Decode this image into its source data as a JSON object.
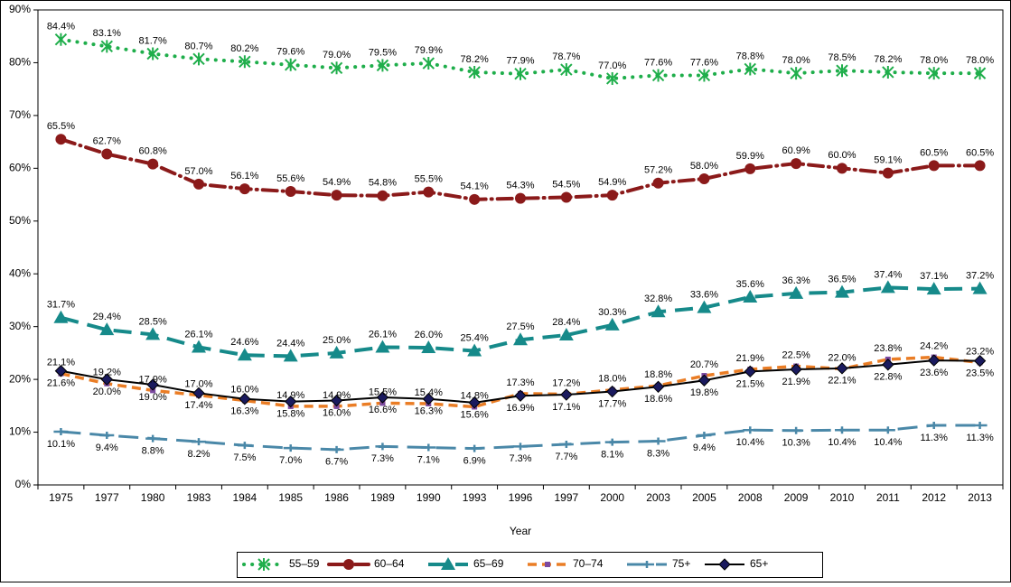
{
  "chart_data": {
    "type": "line",
    "categories": [
      "1975",
      "1977",
      "1980",
      "1983",
      "1984",
      "1985",
      "1986",
      "1989",
      "1990",
      "1993",
      "1996",
      "1997",
      "2000",
      "2003",
      "2005",
      "2008",
      "2009",
      "2010",
      "2011",
      "2012",
      "2013"
    ],
    "x_label": "Year",
    "ylim": [
      0,
      90
    ],
    "yticks": [
      {
        "value": 0,
        "label": "0%"
      },
      {
        "value": 10,
        "label": "10%"
      },
      {
        "value": 20,
        "label": "20%"
      },
      {
        "value": 30,
        "label": "30%"
      },
      {
        "value": 40,
        "label": "40%"
      },
      {
        "value": 50,
        "label": "50%"
      },
      {
        "value": 60,
        "label": "60%"
      },
      {
        "value": 70,
        "label": "70%"
      },
      {
        "value": 80,
        "label": "80%"
      },
      {
        "value": 90,
        "label": "90%"
      }
    ],
    "grid": false,
    "legend": "bottom",
    "series": [
      {
        "name": "55–59",
        "color": "#1fae4b",
        "values": [
          84.4,
          83.1,
          81.7,
          80.7,
          80.2,
          79.6,
          79.0,
          79.5,
          79.9,
          78.2,
          77.9,
          78.7,
          77.0,
          77.6,
          77.6,
          78.8,
          78.0,
          78.5,
          78.2,
          78.0,
          78.0
        ],
        "value_labels": [
          "84.4%",
          "83.1%",
          "81.7%",
          "80.7%",
          "80.2%",
          "79.6%",
          "79.0%",
          "79.5%",
          "79.9%",
          "78.2%",
          "77.9%",
          "78.7%",
          "77.0%",
          "77.6%",
          "77.6%",
          "78.8%",
          "78.0%",
          "78.5%",
          "78.2%",
          "78.0%",
          "78.0%"
        ]
      },
      {
        "name": "60–64",
        "color": "#8b1a1a",
        "values": [
          65.5,
          62.7,
          60.8,
          57.0,
          56.1,
          55.6,
          54.9,
          54.8,
          55.5,
          54.1,
          54.3,
          54.5,
          54.9,
          57.2,
          58.0,
          59.9,
          60.9,
          60.0,
          59.1,
          60.5,
          60.5
        ],
        "value_labels": [
          "65.5%",
          "62.7%",
          "60.8%",
          "57.0%",
          "56.1%",
          "55.6%",
          "54.9%",
          "54.8%",
          "55.5%",
          "54.1%",
          "54.3%",
          "54.5%",
          "54.9%",
          "57.2%",
          "58.0%",
          "59.9%",
          "60.9%",
          "60.0%",
          "59.1%",
          "60.5%",
          "60.5%"
        ]
      },
      {
        "name": "65–69",
        "color": "#168a8a",
        "values": [
          31.7,
          29.4,
          28.5,
          26.1,
          24.6,
          24.4,
          25.0,
          26.1,
          26.0,
          25.4,
          27.5,
          28.4,
          30.3,
          32.8,
          33.6,
          35.6,
          36.3,
          36.5,
          37.4,
          37.1,
          37.2
        ],
        "value_labels": [
          "31.7%",
          "29.4%",
          "28.5%",
          "26.1%",
          "24.6%",
          "24.4%",
          "25.0%",
          "26.1%",
          "26.0%",
          "25.4%",
          "27.5%",
          "28.4%",
          "30.3%",
          "32.8%",
          "33.6%",
          "35.6%",
          "36.3%",
          "36.5%",
          "37.4%",
          "37.1%",
          "37.2%"
        ]
      },
      {
        "name": "70–74",
        "color": "#ea7d25",
        "values": [
          21.1,
          19.2,
          17.9,
          17.0,
          16.0,
          14.9,
          14.9,
          15.5,
          15.4,
          14.8,
          17.3,
          17.2,
          18.0,
          18.8,
          20.7,
          21.9,
          22.5,
          22.0,
          23.8,
          24.2,
          23.2
        ],
        "value_labels": [
          "21.1%",
          "19.2%",
          "17.9%",
          "17.0%",
          "16.0%",
          "14.9%",
          "14.9%",
          "15.5%",
          "15.4%",
          "14.8%",
          "17.3%",
          "17.2%",
          "18.0%",
          "18.8%",
          "20.7%",
          "21.9%",
          "22.5%",
          "22.0%",
          "23.8%",
          "24.2%",
          "23.2%"
        ]
      },
      {
        "name": "75+",
        "color": "#4a88a8",
        "values": [
          10.1,
          9.4,
          8.8,
          8.2,
          7.5,
          7.0,
          6.7,
          7.3,
          7.1,
          6.9,
          7.3,
          7.7,
          8.1,
          8.3,
          9.4,
          10.4,
          10.3,
          10.4,
          10.4,
          11.3,
          11.3
        ],
        "value_labels": [
          "10.1%",
          "9.4%",
          "8.8%",
          "8.2%",
          "7.5%",
          "7.0%",
          "6.7%",
          "7.3%",
          "7.1%",
          "6.9%",
          "7.3%",
          "7.7%",
          "8.1%",
          "8.3%",
          "9.4%",
          "10.4%",
          "10.3%",
          "10.4%",
          "10.4%",
          "11.3%",
          "11.3%"
        ]
      },
      {
        "name": "65+",
        "color": "#000000",
        "values": [
          21.6,
          20.0,
          19.0,
          17.4,
          16.3,
          15.8,
          16.0,
          16.6,
          16.3,
          15.6,
          16.9,
          17.1,
          17.7,
          18.6,
          19.8,
          21.5,
          21.9,
          22.1,
          22.8,
          23.6,
          23.5
        ],
        "value_labels": [
          "21.6%",
          "20.0%",
          "19.0%",
          "17.4%",
          "16.3%",
          "15.8%",
          "16.0%",
          "16.6%",
          "16.3%",
          "15.6%",
          "16.9%",
          "17.1%",
          "17.7%",
          "18.6%",
          "19.8%",
          "21.5%",
          "21.9%",
          "22.1%",
          "22.8%",
          "23.6%",
          "23.5%"
        ]
      }
    ]
  }
}
